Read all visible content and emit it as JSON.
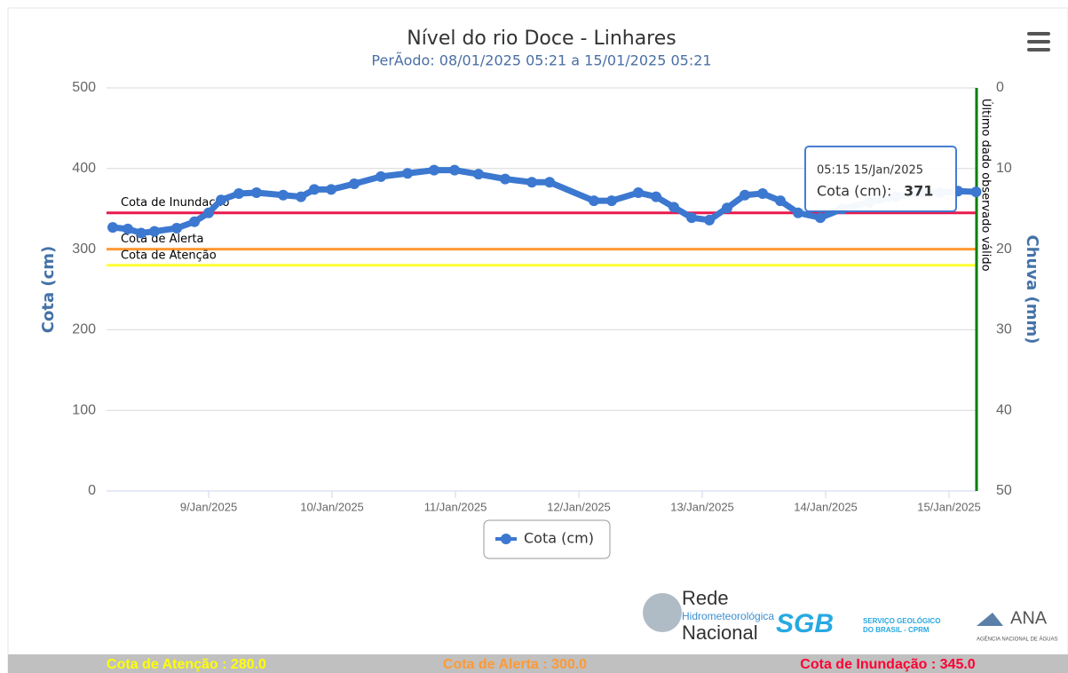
{
  "chart_data": {
    "type": "line",
    "title": "Nível do rio Doce - Linhares",
    "subtitle": "PerÃodo: 08/01/2025 05:21 a 15/01/2025 05:21",
    "ylabel": "Cota (cm)",
    "y2label": "Chuva (mm)",
    "xlim": [
      8.2229,
      15.2229
    ],
    "xticks": [
      {
        "value": 9,
        "label": "9/Jan/2025"
      },
      {
        "value": 10,
        "label": "10/Jan/2025"
      },
      {
        "value": 11,
        "label": "11/Jan/2025"
      },
      {
        "value": 12,
        "label": "12/Jan/2025"
      },
      {
        "value": 13,
        "label": "13/Jan/2025"
      },
      {
        "value": 14,
        "label": "14/Jan/2025"
      },
      {
        "value": 15,
        "label": "15/Jan/2025"
      }
    ],
    "ylim": [
      0,
      500
    ],
    "yticks": [
      0,
      100,
      200,
      300,
      400,
      500
    ],
    "y2lim": [
      50,
      0
    ],
    "y2ticks": [
      0,
      10,
      20,
      30,
      40,
      50
    ],
    "grid": true,
    "legend": "bottom",
    "x": [
      8.223,
      8.345,
      8.453,
      8.561,
      8.741,
      8.885,
      9.0,
      9.101,
      9.245,
      9.388,
      9.604,
      9.748,
      9.856,
      9.993,
      10.18,
      10.396,
      10.612,
      10.827,
      10.993,
      11.187,
      11.403,
      11.619,
      11.763,
      12.122,
      12.266,
      12.482,
      12.626,
      12.77,
      12.914,
      13.058,
      13.201,
      13.345,
      13.489,
      13.633,
      13.777,
      13.957,
      14.137,
      14.353,
      14.568,
      14.784,
      14.928,
      15.072,
      15.219
    ],
    "series": [
      {
        "name": "Cota (cm)",
        "color": "#3c78d0",
        "values": [
          327,
          325,
          320,
          322,
          326,
          334,
          345,
          361,
          369,
          370,
          367,
          365,
          374,
          374,
          381,
          390,
          394,
          398,
          398,
          393,
          387,
          383,
          383,
          360,
          360,
          370,
          365,
          352,
          339,
          336,
          351,
          367,
          369,
          360,
          345,
          339,
          350,
          358,
          365,
          370,
          370,
          372,
          371
        ]
      }
    ],
    "plot_lines": [
      {
        "value": 345,
        "label": "Cota de Inundação",
        "color": "#e8194d"
      },
      {
        "value": 300,
        "label": "Cota de Alerta",
        "color": "#ff9933"
      },
      {
        "value": 280,
        "label": "Cota de Atenção",
        "color": "#ffff33"
      }
    ],
    "vertical_line": {
      "x": 15.2229,
      "label": "Último dado observado válido",
      "color": "#008000"
    },
    "tooltip": {
      "time": "05:15 15/Jan/2025",
      "label": "Cota (cm):",
      "value": 371
    }
  },
  "logos": {
    "rede": "Rede",
    "hidro": "Hidrometeorológica",
    "nacional": "Nacional",
    "sgb": "SGB",
    "servico": "SERVIÇO GEOLÓGICO",
    "cprm": "DO BRASIL - CPRM",
    "ana": "ANA",
    "agencia": "AGÊNCIA NACIONAL DE ÁGUAS"
  },
  "footer": [
    {
      "text": "Cota de Atenção : 280.0",
      "color": "#ffff00"
    },
    {
      "text": "Cota de Alerta : 300.0",
      "color": "#ff9933"
    },
    {
      "text": "Cota de Inundação : 345.0",
      "color": "#ff0033"
    }
  ]
}
